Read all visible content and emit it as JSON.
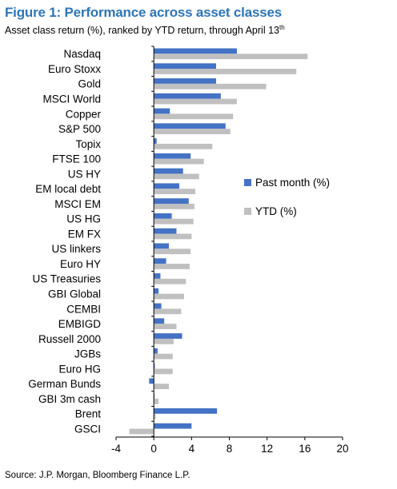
{
  "header": {
    "title": "Figure 1: Performance across asset classes",
    "subtitle": "Asset class return (%), ranked by YTD return, through April 13",
    "subtitle_sup": "th"
  },
  "footer": {
    "source": "Source: J.P. Morgan, Bloomberg Finance L.P."
  },
  "colors": {
    "past_month": "#4472c4",
    "ytd": "#c0c0c0",
    "title": "#2e75b6"
  },
  "chart_data": {
    "type": "bar",
    "orientation": "horizontal",
    "categories": [
      "Nasdaq",
      "Euro Stoxx",
      "Gold",
      "MSCI World",
      "Copper",
      "S&P 500",
      "Topix",
      "FTSE 100",
      "US HY",
      "EM local debt",
      "MSCI EM",
      "US HG",
      "EM FX",
      "US linkers",
      "Euro HY",
      "US Treasuries",
      "GBI Global",
      "CEMBI",
      "EMBIGD",
      "Russell 2000",
      "JGBs",
      "Euro HG",
      "German Bunds",
      "GBI 3m cash",
      "Brent",
      "GSCI"
    ],
    "series": [
      {
        "name": "Past month (%)",
        "values": [
          8.8,
          6.6,
          6.6,
          7.1,
          1.7,
          7.6,
          0.3,
          3.9,
          3.1,
          2.7,
          3.7,
          1.9,
          2.4,
          1.6,
          1.3,
          0.7,
          0.5,
          0.8,
          1.1,
          3.0,
          0.4,
          0.1,
          -0.5,
          0.0,
          6.7,
          4.0
        ]
      },
      {
        "name": "YTD (%)",
        "values": [
          16.3,
          15.1,
          11.9,
          8.8,
          8.4,
          8.1,
          6.2,
          5.3,
          4.8,
          4.4,
          4.3,
          4.2,
          4.0,
          3.9,
          3.8,
          3.4,
          3.2,
          2.9,
          2.4,
          2.1,
          2.0,
          2.0,
          1.6,
          0.5,
          0.2,
          -2.6
        ]
      }
    ],
    "xlim": [
      -4,
      20
    ],
    "xticks": [
      "-4",
      "0",
      "4",
      "8",
      "12",
      "16",
      "20"
    ],
    "grid": false,
    "legend_position": "right"
  }
}
